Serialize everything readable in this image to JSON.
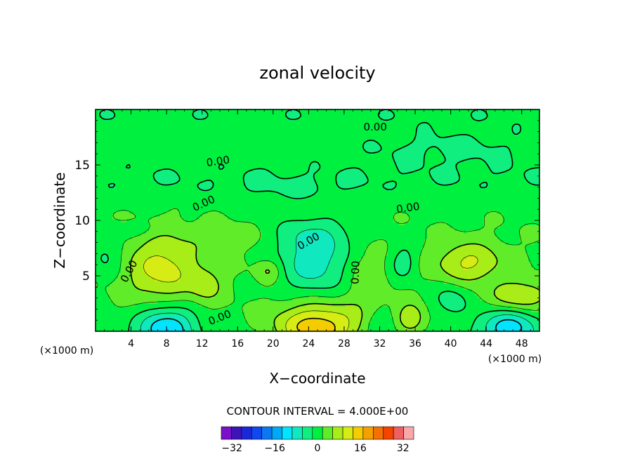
{
  "chart_data": {
    "type": "heatmap",
    "title": "zonal velocity",
    "xlabel": "X−coordinate",
    "ylabel": "Z−coordinate",
    "x_unit": "(×1000 m)",
    "xlim": [
      0,
      50
    ],
    "ylim": [
      0,
      20
    ],
    "xticks": [
      4,
      8,
      12,
      16,
      20,
      24,
      28,
      32,
      36,
      40,
      44,
      48
    ],
    "xtick_labels": [
      "4",
      "8",
      "12",
      "16",
      "20",
      "24",
      "28",
      "32",
      "36",
      "40",
      "44",
      "48"
    ],
    "yticks": [
      5,
      10,
      15
    ],
    "ytick_labels": [
      "5",
      "10",
      "15"
    ],
    "contour_interval_text": "CONTOUR INTERVAL = 4.000E+00",
    "contour_label": "0.00",
    "contour_labels": [
      {
        "text": "0.00",
        "x": 31.5,
        "y": 18.4,
        "rot": 0
      },
      {
        "text": "0.00",
        "x": 13.8,
        "y": 15.3,
        "rot": -8
      },
      {
        "text": "0.00",
        "x": 12.2,
        "y": 11.5,
        "rot": -25
      },
      {
        "text": "0.00",
        "x": 35.2,
        "y": 11.1,
        "rot": -8
      },
      {
        "text": "0.00",
        "x": 24.0,
        "y": 8.1,
        "rot": -30
      },
      {
        "text": "0.00",
        "x": 3.8,
        "y": 5.4,
        "rot": -62
      },
      {
        "text": "0.00",
        "x": 14.0,
        "y": 1.2,
        "rot": -22
      },
      {
        "text": "0.00",
        "x": 29.3,
        "y": 5.3,
        "rot": -88
      }
    ],
    "colorbar": {
      "levels": [
        -36,
        -32,
        -28,
        -24,
        -20,
        -16,
        -12,
        -8,
        -4,
        0,
        4,
        8,
        12,
        16,
        20,
        24,
        28,
        32,
        36
      ],
      "tick_values": [
        -32,
        -16,
        0,
        16,
        32
      ],
      "tick_labels": [
        "−32",
        "−16",
        "0",
        "16",
        "32"
      ],
      "colors": [
        "#7a10c8",
        "#3e14b8",
        "#1c28d8",
        "#0f48ee",
        "#0a78f2",
        "#00a8f8",
        "#00e4ff",
        "#10e8c0",
        "#10ee80",
        "#00f040",
        "#60ec28",
        "#a8ec18",
        "#d6ec14",
        "#f4cc00",
        "#f4a000",
        "#f47000",
        "#f44400",
        "#f06060",
        "#f8a8a8"
      ]
    },
    "field": {
      "background": 1.5,
      "bands": [
        {
          "y0": 0,
          "y1": 12.2,
          "value": 2.2
        },
        {
          "y0": 12.2,
          "y1": 14.9,
          "value": -1.8
        },
        {
          "y0": 18.8,
          "y1": 20,
          "value": -1.8
        }
      ],
      "blobs": [
        {
          "x": 7.5,
          "y": 5.6,
          "rx": 4.0,
          "ry": 3.1,
          "value": 10
        },
        {
          "x": 8.0,
          "y": 0.4,
          "rx": 3.3,
          "ry": 2.0,
          "value": -15
        },
        {
          "x": 1.2,
          "y": 6.8,
          "rx": 1.8,
          "ry": 1.7,
          "value": -5
        },
        {
          "x": 4.5,
          "y": 9.2,
          "rx": 2.8,
          "ry": 0.7,
          "value": -3
        },
        {
          "x": 12.5,
          "y": 4.2,
          "rx": 1.8,
          "ry": 1.5,
          "value": 6
        },
        {
          "x": 15.0,
          "y": 8.5,
          "rx": 4.5,
          "ry": 1.2,
          "value": 3
        },
        {
          "x": 19.5,
          "y": 5.5,
          "rx": 1.4,
          "ry": 1.0,
          "value": 6
        },
        {
          "x": 24.6,
          "y": 6.3,
          "rx": 4.0,
          "ry": 3.0,
          "value": -10
        },
        {
          "x": 24.5,
          "y": 8.8,
          "rx": 5.5,
          "ry": 1.6,
          "value": -4
        },
        {
          "x": 25.0,
          "y": 0.3,
          "rx": 4.6,
          "ry": 2.2,
          "value": 16
        },
        {
          "x": 30.5,
          "y": 4.8,
          "rx": 2.2,
          "ry": 3.2,
          "value": 4
        },
        {
          "x": 32.0,
          "y": 0.6,
          "rx": 1.6,
          "ry": 1.2,
          "value": -5
        },
        {
          "x": 34.7,
          "y": 6.2,
          "rx": 1.5,
          "ry": 1.6,
          "value": -6
        },
        {
          "x": 35.5,
          "y": 1.2,
          "rx": 1.5,
          "ry": 1.3,
          "value": 9
        },
        {
          "x": 42.0,
          "y": 6.2,
          "rx": 3.8,
          "ry": 1.8,
          "value": 9
        },
        {
          "x": 40.0,
          "y": 2.8,
          "rx": 2.0,
          "ry": 1.5,
          "value": -6
        },
        {
          "x": 46.5,
          "y": 0.4,
          "rx": 3.5,
          "ry": 1.6,
          "value": -13
        },
        {
          "x": 47.8,
          "y": 3.2,
          "rx": 3.0,
          "ry": 1.3,
          "value": 9
        },
        {
          "x": 40.0,
          "y": 16.5,
          "rx": 10,
          "ry": 1.5,
          "value": -2
        },
        {
          "x": 22.0,
          "y": 12.5,
          "rx": 7,
          "ry": 1.2,
          "value": -1.5
        }
      ]
    }
  }
}
